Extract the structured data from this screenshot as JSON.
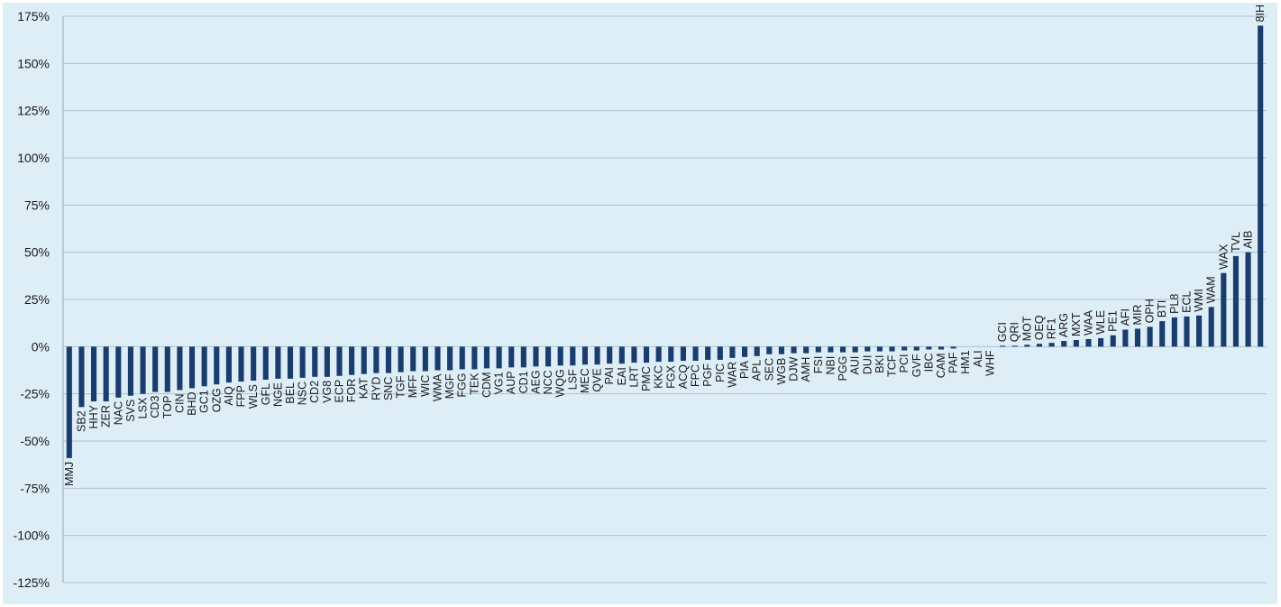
{
  "chart_data": {
    "type": "bar",
    "title": "",
    "xlabel": "",
    "ylabel": "",
    "ylim": [
      -125,
      175
    ],
    "yticks": [
      175,
      150,
      125,
      100,
      75,
      50,
      25,
      0,
      -25,
      -50,
      -75,
      -100,
      -125
    ],
    "ytick_labels": [
      "175%",
      "150%",
      "125%",
      "100%",
      "75%",
      "50%",
      "25%",
      "0%",
      "-25%",
      "-50%",
      "-75%",
      "-100%",
      "-125%"
    ],
    "grid": true,
    "legend": "none",
    "bar_color": "#1a3d6e",
    "categories": [
      "MMJ",
      "SB2",
      "HHY",
      "ZER",
      "NAC",
      "SVS",
      "LSX",
      "CD3",
      "TOP",
      "CIN",
      "BHD",
      "GC1",
      "OZG",
      "AIQ",
      "FPP",
      "WLS",
      "GFL",
      "NGE",
      "BEL",
      "NSC",
      "CD2",
      "VG8",
      "ECP",
      "FOR",
      "KAT",
      "RYD",
      "SNC",
      "TGF",
      "MFF",
      "WIC",
      "WMA",
      "MGF",
      "FGG",
      "TEK",
      "CDM",
      "VG1",
      "AUP",
      "CD1",
      "AEG",
      "NCC",
      "WQG",
      "LSF",
      "MEC",
      "QVE",
      "PAI",
      "EAI",
      "LRT",
      "PMC",
      "KKC",
      "FGX",
      "ACQ",
      "FPC",
      "PGF",
      "PIC",
      "WAR",
      "PIA",
      "APL",
      "SEC",
      "WGB",
      "DJW",
      "AMH",
      "FSI",
      "NBI",
      "PGG",
      "AUI",
      "DUI",
      "BKI",
      "TCF",
      "PCI",
      "GVF",
      "IBC",
      "CAM",
      "PAF",
      "HM1",
      "ALI",
      "WHF",
      "GCI",
      "QRI",
      "MOT",
      "OEQ",
      "RF1",
      "ARG",
      "MXT",
      "WAA",
      "WLE",
      "PE1",
      "AFI",
      "MIR",
      "OPH",
      "BTI",
      "PL8",
      "ECL",
      "WMI",
      "WAM",
      "WAX",
      "TVL",
      "AIB",
      "8IH"
    ],
    "values": [
      -59,
      -32,
      -29,
      -29,
      -27,
      -26,
      -25,
      -24,
      -24,
      -23,
      -22,
      -21,
      -20,
      -19,
      -18.5,
      -18,
      -17.5,
      -17,
      -17,
      -16.5,
      -16,
      -16,
      -15.5,
      -15,
      -14.5,
      -14,
      -14,
      -13.5,
      -13,
      -13,
      -12.5,
      -12.5,
      -12,
      -12,
      -11.5,
      -11.5,
      -11,
      -11,
      -10.5,
      -10.5,
      -10,
      -10,
      -9.5,
      -9.5,
      -9,
      -9,
      -8.5,
      -8.5,
      -8,
      -8,
      -7.5,
      -7.5,
      -7,
      -7,
      -6,
      -5.5,
      -5,
      -4,
      -4,
      -3.5,
      -3.5,
      -3,
      -3,
      -3,
      -3,
      -2.5,
      -2.5,
      -2.5,
      -2,
      -2,
      -1.5,
      -1.5,
      -1,
      0,
      0,
      0,
      0.5,
      0.5,
      1,
      1.5,
      2,
      3,
      3.5,
      4,
      4.5,
      6,
      9,
      9.5,
      10.5,
      13.5,
      15.5,
      16,
      16.5,
      21,
      39,
      48,
      50,
      170
    ]
  }
}
